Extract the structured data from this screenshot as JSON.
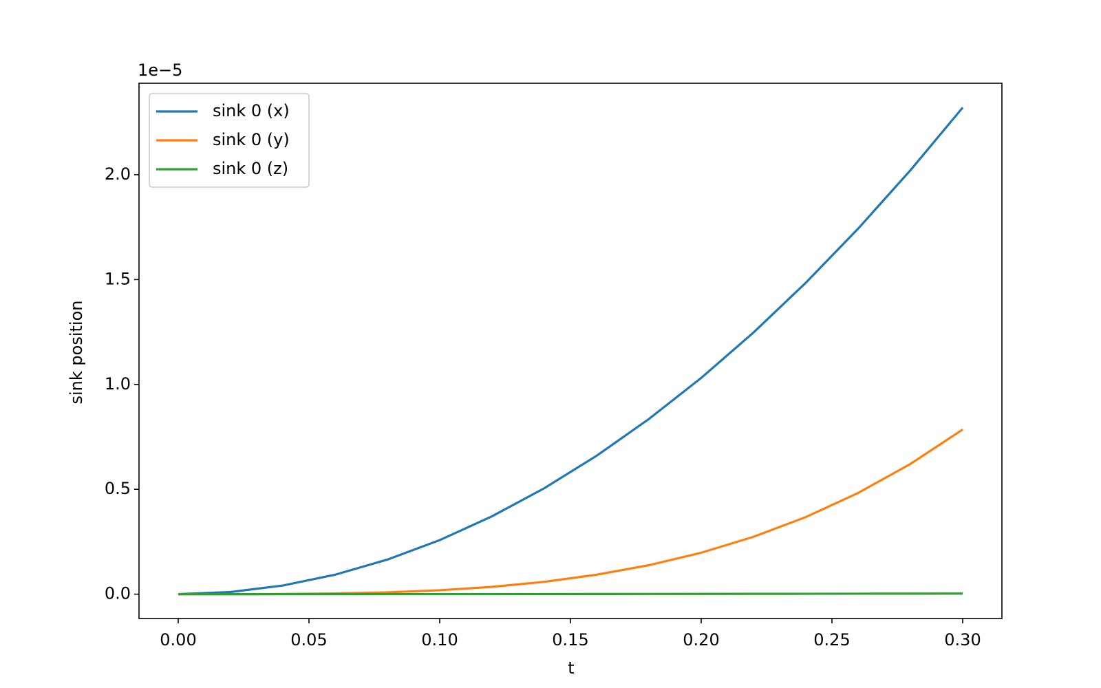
{
  "chart_data": {
    "type": "line",
    "xlabel": "t",
    "ylabel": "sink position",
    "offset_label": "1e−5",
    "x": [
      0,
      0.02,
      0.04,
      0.06,
      0.08,
      0.1,
      0.12,
      0.14,
      0.16,
      0.18,
      0.2,
      0.22,
      0.24,
      0.26,
      0.28,
      0.3
    ],
    "series": [
      {
        "name": "sink 0 (x)",
        "color": "#1f77b4",
        "values": [
          0,
          0.0103,
          0.0412,
          0.0928,
          0.165,
          0.2578,
          0.3712,
          0.5052,
          0.6599,
          0.8352,
          1.0311,
          1.2476,
          1.4848,
          1.7426,
          2.021,
          2.32
        ]
      },
      {
        "name": "sink 0 (y)",
        "color": "#ff7f0e",
        "values": [
          0,
          0.0001,
          0.0008,
          0.0033,
          0.0088,
          0.0187,
          0.0348,
          0.0588,
          0.0927,
          0.1382,
          0.1977,
          0.2734,
          0.3676,
          0.4825,
          0.6208,
          0.785
        ]
      },
      {
        "name": "sink 0 (z)",
        "color": "#2ca02c",
        "values": [
          0,
          0,
          0,
          0.0001,
          0.0002,
          0.0003,
          0.0005,
          0.0007,
          0.0009,
          0.0011,
          0.0013,
          0.0016,
          0.0019,
          0.0023,
          0.0026,
          0.003
        ]
      }
    ],
    "xlim": [
      -0.015,
      0.315
    ],
    "ylim": [
      -0.116,
      2.436
    ],
    "xticks": [
      {
        "value": 0,
        "label": "0.00"
      },
      0.05,
      {
        "value": 0.1,
        "label": "0.10"
      },
      0.15,
      {
        "value": 0.2,
        "label": "0.20"
      },
      0.25,
      {
        "value": 0.3,
        "label": "0.30"
      }
    ],
    "yticks": [
      {
        "value": 0,
        "label": "0.0"
      },
      0.5,
      {
        "value": 1,
        "label": "1.0"
      },
      1.5,
      {
        "value": 2,
        "label": "2.0"
      }
    ],
    "grid": false,
    "legend": "upper left"
  }
}
